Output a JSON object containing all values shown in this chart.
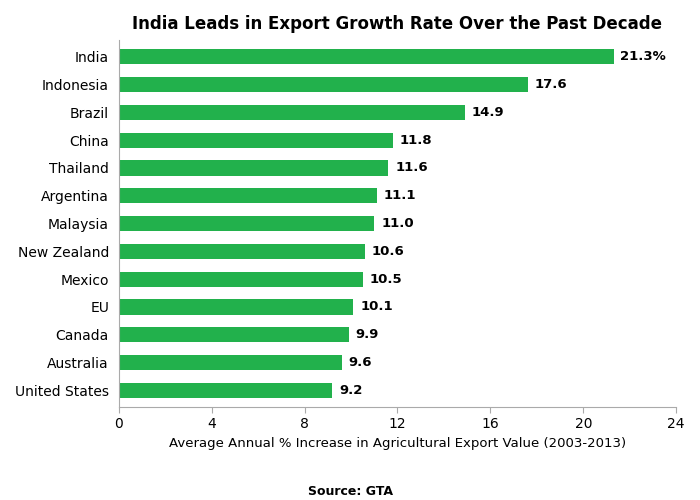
{
  "title": "India Leads in Export Growth Rate Over the Past Decade",
  "xlabel": "Average Annual % Increase in Agricultural Export Value (2003-2013)",
  "source": "Source: GTA",
  "countries": [
    "United States",
    "Australia",
    "Canada",
    "EU",
    "Mexico",
    "New Zealand",
    "Malaysia",
    "Argentina",
    "Thailand",
    "China",
    "Brazil",
    "Indonesia",
    "India"
  ],
  "values": [
    9.2,
    9.6,
    9.9,
    10.1,
    10.5,
    10.6,
    11.0,
    11.1,
    11.6,
    11.8,
    14.9,
    17.6,
    21.3
  ],
  "labels": [
    "9.2",
    "9.6",
    "9.9",
    "10.1",
    "10.5",
    "10.6",
    "11.0",
    "11.1",
    "11.6",
    "11.8",
    "14.9",
    "17.6",
    "21.3%"
  ],
  "bar_color": "#22b14c",
  "xlim": [
    0,
    24
  ],
  "xticks": [
    0,
    4,
    8,
    12,
    16,
    20,
    24
  ],
  "title_fontsize": 12,
  "label_fontsize": 9.5,
  "tick_fontsize": 10,
  "source_fontsize": 9,
  "bar_height": 0.55
}
